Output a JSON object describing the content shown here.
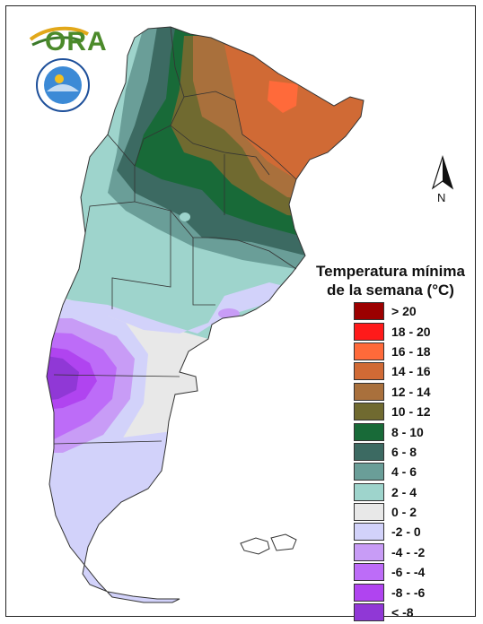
{
  "map": {
    "legend_title": "Temperatura mínima de la semana (°C)",
    "north_label": "N",
    "logo_text": "ORA",
    "seal_text": "SERVICIO METEOROLÓGICO NACIONAL · ARGENTINA",
    "legend": [
      {
        "label": "> 20",
        "color": "#9c0000"
      },
      {
        "label": "18 - 20",
        "color": "#ff1a1a"
      },
      {
        "label": "16 - 18",
        "color": "#ff6a3a"
      },
      {
        "label": "14 - 16",
        "color": "#d06a35"
      },
      {
        "label": "12 - 14",
        "color": "#a9703c"
      },
      {
        "label": "10 - 12",
        "color": "#706a30"
      },
      {
        "label": "8 - 10",
        "color": "#186a38"
      },
      {
        "label": "6 - 8",
        "color": "#3c6a62"
      },
      {
        "label": "4 - 6",
        "color": "#6a9e98"
      },
      {
        "label": "2 - 4",
        "color": "#9ed4cc"
      },
      {
        "label": "0 - 2",
        "color": "#e8e8e8"
      },
      {
        "label": "-2 - 0",
        "color": "#d2d2fa"
      },
      {
        "label": "-4 - -2",
        "color": "#c89cf6"
      },
      {
        "label": "-6 - -4",
        "color": "#bd6cf8"
      },
      {
        "label": "-8 - -6",
        "color": "#b044f0"
      },
      {
        "label": "< -8",
        "color": "#9038d6"
      }
    ]
  }
}
